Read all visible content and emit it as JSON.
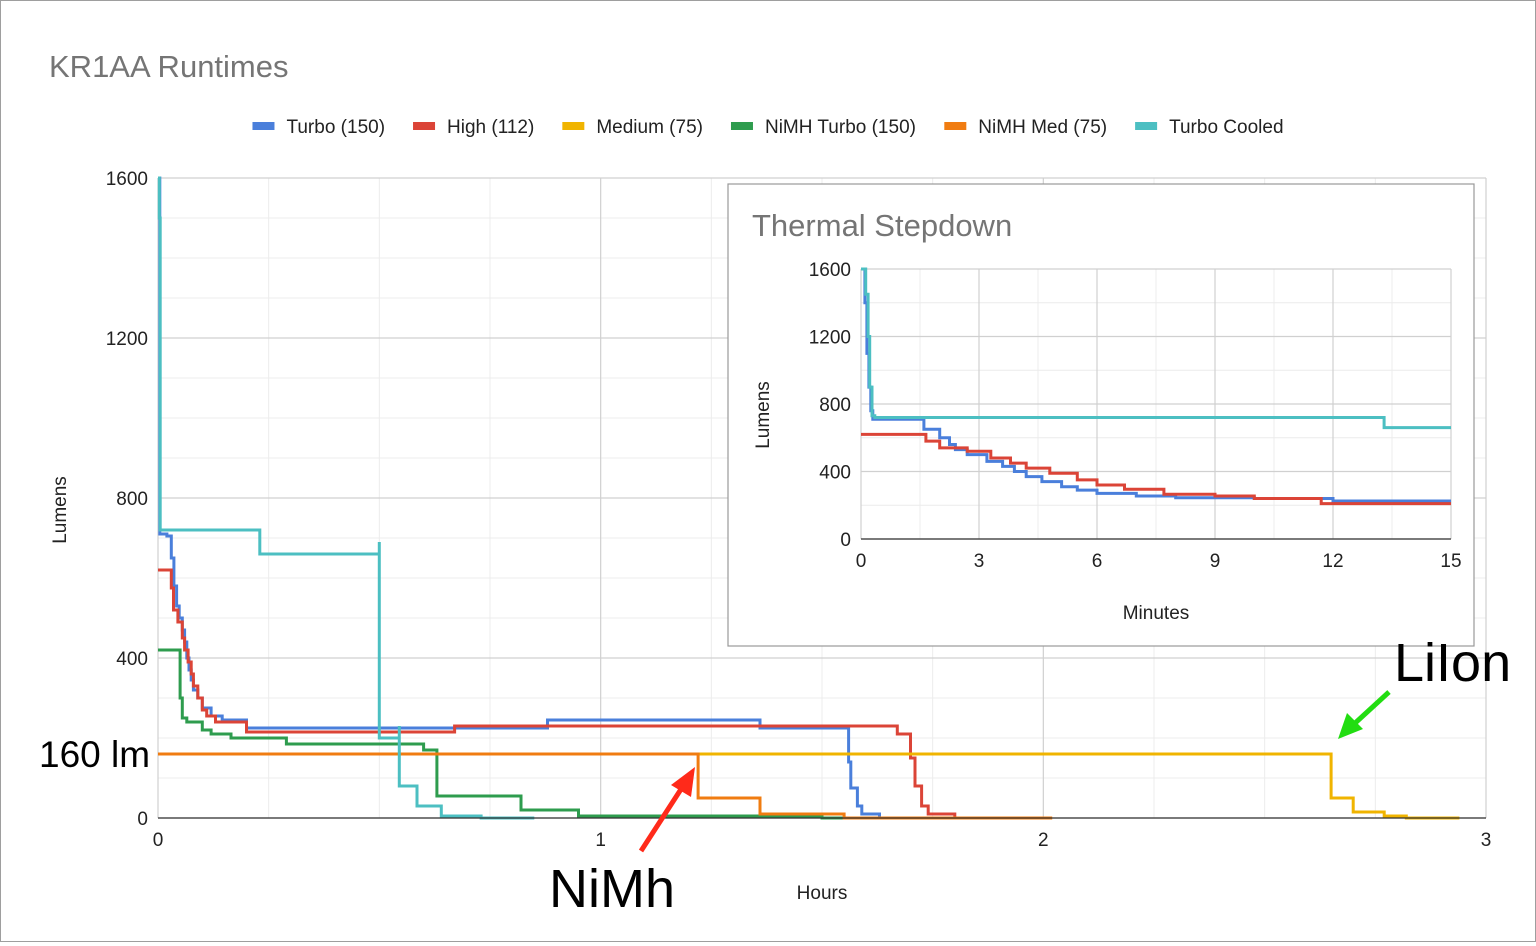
{
  "chart_data": [
    {
      "type": "line",
      "title": "KR1AA Runtimes",
      "xlabel": "Hours",
      "ylabel": "Lumens",
      "xlim": [
        0,
        3
      ],
      "ylim": [
        0,
        1600
      ],
      "x_ticks": [
        "0",
        "1",
        "2",
        "3"
      ],
      "y_ticks": [
        "0",
        "400",
        "800",
        "1200",
        "1600"
      ],
      "grid": true,
      "legend": "top",
      "series": [
        {
          "name": "Turbo (150)",
          "color": "#4a7fdb",
          "points": [
            [
              0,
              1600
            ],
            [
              0.004,
              1600
            ],
            [
              0.004,
              710
            ],
            [
              0.02,
              710
            ],
            [
              0.02,
              705
            ],
            [
              0.03,
              705
            ],
            [
              0.03,
              650
            ],
            [
              0.036,
              650
            ],
            [
              0.036,
              580
            ],
            [
              0.042,
              580
            ],
            [
              0.042,
              530
            ],
            [
              0.048,
              530
            ],
            [
              0.048,
              500
            ],
            [
              0.055,
              500
            ],
            [
              0.055,
              470
            ],
            [
              0.06,
              470
            ],
            [
              0.06,
              440
            ],
            [
              0.065,
              440
            ],
            [
              0.065,
              400
            ],
            [
              0.07,
              400
            ],
            [
              0.07,
              370
            ],
            [
              0.075,
              370
            ],
            [
              0.075,
              345
            ],
            [
              0.08,
              345
            ],
            [
              0.08,
              320
            ],
            [
              0.09,
              320
            ],
            [
              0.09,
              300
            ],
            [
              0.1,
              300
            ],
            [
              0.1,
              275
            ],
            [
              0.12,
              275
            ],
            [
              0.12,
              255
            ],
            [
              0.145,
              255
            ],
            [
              0.145,
              245
            ],
            [
              0.2,
              245
            ],
            [
              0.2,
              225
            ],
            [
              0.88,
              225
            ],
            [
              0.88,
              245
            ],
            [
              1.36,
              245
            ],
            [
              1.36,
              225
            ],
            [
              1.56,
              225
            ],
            [
              1.56,
              140
            ],
            [
              1.565,
              140
            ],
            [
              1.565,
              75
            ],
            [
              1.58,
              75
            ],
            [
              1.58,
              30
            ],
            [
              1.59,
              30
            ],
            [
              1.59,
              10
            ],
            [
              1.63,
              10
            ],
            [
              1.63,
              0
            ],
            [
              1.75,
              0
            ]
          ]
        },
        {
          "name": "High (112)",
          "color": "#db4437",
          "points": [
            [
              0,
              620
            ],
            [
              0.03,
              620
            ],
            [
              0.03,
              575
            ],
            [
              0.035,
              575
            ],
            [
              0.035,
              520
            ],
            [
              0.045,
              520
            ],
            [
              0.045,
              490
            ],
            [
              0.055,
              490
            ],
            [
              0.055,
              450
            ],
            [
              0.06,
              450
            ],
            [
              0.06,
              420
            ],
            [
              0.068,
              420
            ],
            [
              0.068,
              390
            ],
            [
              0.075,
              390
            ],
            [
              0.075,
              360
            ],
            [
              0.08,
              360
            ],
            [
              0.08,
              330
            ],
            [
              0.09,
              330
            ],
            [
              0.09,
              300
            ],
            [
              0.1,
              300
            ],
            [
              0.1,
              270
            ],
            [
              0.11,
              270
            ],
            [
              0.11,
              255
            ],
            [
              0.13,
              255
            ],
            [
              0.13,
              240
            ],
            [
              0.2,
              240
            ],
            [
              0.2,
              215
            ],
            [
              0.67,
              215
            ],
            [
              0.67,
              230
            ],
            [
              1.67,
              230
            ],
            [
              1.67,
              210
            ],
            [
              1.7,
              210
            ],
            [
              1.7,
              150
            ],
            [
              1.71,
              150
            ],
            [
              1.71,
              80
            ],
            [
              1.725,
              80
            ],
            [
              1.725,
              30
            ],
            [
              1.74,
              30
            ],
            [
              1.74,
              10
            ],
            [
              1.8,
              10
            ],
            [
              1.8,
              0
            ],
            [
              1.9,
              0
            ]
          ]
        },
        {
          "name": "Medium (75)",
          "color": "#f0b400",
          "points": [
            [
              0,
              160
            ],
            [
              2.65,
              160
            ],
            [
              2.65,
              50
            ],
            [
              2.66,
              50
            ],
            [
              2.66,
              50
            ],
            [
              2.7,
              50
            ],
            [
              2.7,
              15
            ],
            [
              2.77,
              15
            ],
            [
              2.77,
              5
            ],
            [
              2.82,
              5
            ],
            [
              2.82,
              0
            ],
            [
              2.94,
              0
            ]
          ]
        },
        {
          "name": "NiMH Turbo (150)",
          "color": "#2e9c4e",
          "points": [
            [
              0,
              420
            ],
            [
              0.05,
              420
            ],
            [
              0.05,
              300
            ],
            [
              0.055,
              300
            ],
            [
              0.055,
              250
            ],
            [
              0.065,
              250
            ],
            [
              0.065,
              240
            ],
            [
              0.1,
              240
            ],
            [
              0.1,
              220
            ],
            [
              0.12,
              220
            ],
            [
              0.12,
              210
            ],
            [
              0.165,
              210
            ],
            [
              0.165,
              200
            ],
            [
              0.29,
              200
            ],
            [
              0.29,
              185
            ],
            [
              0.6,
              185
            ],
            [
              0.6,
              170
            ],
            [
              0.63,
              170
            ],
            [
              0.63,
              55
            ],
            [
              0.82,
              55
            ],
            [
              0.82,
              20
            ],
            [
              0.95,
              20
            ],
            [
              0.95,
              5
            ],
            [
              1.5,
              5
            ],
            [
              1.5,
              0
            ],
            [
              1.6,
              0
            ]
          ]
        },
        {
          "name": "NiMH Med (75)",
          "color": "#f07c11",
          "points": [
            [
              0,
              160
            ],
            [
              1.22,
              160
            ],
            [
              1.22,
              50
            ],
            [
              1.36,
              50
            ],
            [
              1.36,
              10
            ],
            [
              1.55,
              10
            ],
            [
              1.55,
              0
            ],
            [
              2.02,
              0
            ]
          ]
        },
        {
          "name": "Turbo Cooled",
          "color": "#4cbfc2",
          "points": [
            [
              0,
              1600
            ],
            [
              0.003,
              1600
            ],
            [
              0.003,
              1500
            ],
            [
              0.005,
              1500
            ],
            [
              0.005,
              720
            ],
            [
              0.23,
              720
            ],
            [
              0.23,
              660
            ],
            [
              0.5,
              660
            ],
            [
              0.5,
              690
            ],
            [
              0.5,
              200
            ],
            [
              0.545,
              200
            ],
            [
              0.545,
              230
            ],
            [
              0.545,
              80
            ],
            [
              0.585,
              80
            ],
            [
              0.585,
              30
            ],
            [
              0.64,
              30
            ],
            [
              0.64,
              5
            ],
            [
              0.73,
              5
            ],
            [
              0.73,
              0
            ],
            [
              0.85,
              0
            ]
          ]
        }
      ],
      "annotations": [
        {
          "text": "160 lm",
          "y": 160
        },
        {
          "text": "NiMh",
          "x": 1.22,
          "y": 160,
          "arrow_color": "#ff2a1a"
        },
        {
          "text": "LiIon",
          "x": 2.65,
          "y": 160,
          "arrow_color": "#22dd11"
        }
      ]
    },
    {
      "type": "line",
      "title": "Thermal Stepdown",
      "xlabel": "Minutes",
      "ylabel": "Lumens",
      "xlim": [
        0,
        15
      ],
      "ylim": [
        0,
        1600
      ],
      "x_ticks": [
        "0",
        "3",
        "6",
        "9",
        "12",
        "15"
      ],
      "y_ticks": [
        "0",
        "400",
        "800",
        "1200",
        "1600"
      ],
      "grid": true,
      "series": [
        {
          "name": "Turbo (150)",
          "color": "#4a7fdb",
          "points": [
            [
              0,
              1600
            ],
            [
              0.1,
              1600
            ],
            [
              0.1,
              1400
            ],
            [
              0.15,
              1400
            ],
            [
              0.15,
              1100
            ],
            [
              0.2,
              1100
            ],
            [
              0.2,
              900
            ],
            [
              0.25,
              900
            ],
            [
              0.25,
              760
            ],
            [
              0.3,
              760
            ],
            [
              0.3,
              710
            ],
            [
              1.6,
              710
            ],
            [
              1.6,
              650
            ],
            [
              2.0,
              650
            ],
            [
              2.0,
              600
            ],
            [
              2.25,
              600
            ],
            [
              2.25,
              560
            ],
            [
              2.4,
              560
            ],
            [
              2.4,
              530
            ],
            [
              2.7,
              530
            ],
            [
              2.7,
              500
            ],
            [
              3.2,
              500
            ],
            [
              3.2,
              460
            ],
            [
              3.6,
              460
            ],
            [
              3.6,
              430
            ],
            [
              3.9,
              430
            ],
            [
              3.9,
              400
            ],
            [
              4.2,
              400
            ],
            [
              4.2,
              370
            ],
            [
              4.6,
              370
            ],
            [
              4.6,
              340
            ],
            [
              5.1,
              340
            ],
            [
              5.1,
              310
            ],
            [
              5.5,
              310
            ],
            [
              5.5,
              290
            ],
            [
              6.0,
              290
            ],
            [
              6.0,
              270
            ],
            [
              7.0,
              270
            ],
            [
              7.0,
              255
            ],
            [
              8.0,
              255
            ],
            [
              8.0,
              245
            ],
            [
              10.0,
              245
            ],
            [
              10.0,
              240
            ],
            [
              12.0,
              240
            ],
            [
              12.0,
              225
            ],
            [
              15,
              225
            ]
          ]
        },
        {
          "name": "High (112)",
          "color": "#db4437",
          "points": [
            [
              0,
              620
            ],
            [
              1.65,
              620
            ],
            [
              1.65,
              580
            ],
            [
              2.0,
              580
            ],
            [
              2.0,
              540
            ],
            [
              2.7,
              540
            ],
            [
              2.7,
              520
            ],
            [
              3.3,
              520
            ],
            [
              3.3,
              480
            ],
            [
              3.8,
              480
            ],
            [
              3.8,
              450
            ],
            [
              4.2,
              450
            ],
            [
              4.2,
              420
            ],
            [
              4.8,
              420
            ],
            [
              4.8,
              390
            ],
            [
              5.5,
              390
            ],
            [
              5.5,
              350
            ],
            [
              6.0,
              350
            ],
            [
              6.0,
              320
            ],
            [
              6.7,
              320
            ],
            [
              6.7,
              295
            ],
            [
              7.7,
              295
            ],
            [
              7.7,
              265
            ],
            [
              9.0,
              265
            ],
            [
              9.0,
              255
            ],
            [
              10.0,
              255
            ],
            [
              10.0,
              240
            ],
            [
              11.7,
              240
            ],
            [
              11.7,
              210
            ],
            [
              15,
              210
            ]
          ]
        },
        {
          "name": "Turbo Cooled",
          "color": "#4cbfc2",
          "points": [
            [
              0,
              1600
            ],
            [
              0.12,
              1600
            ],
            [
              0.12,
              1450
            ],
            [
              0.18,
              1450
            ],
            [
              0.18,
              1200
            ],
            [
              0.22,
              1200
            ],
            [
              0.22,
              900
            ],
            [
              0.28,
              900
            ],
            [
              0.28,
              730
            ],
            [
              0.35,
              730
            ],
            [
              0.35,
              720
            ],
            [
              13.3,
              720
            ],
            [
              13.3,
              660
            ],
            [
              15,
              660
            ]
          ]
        }
      ]
    }
  ]
}
